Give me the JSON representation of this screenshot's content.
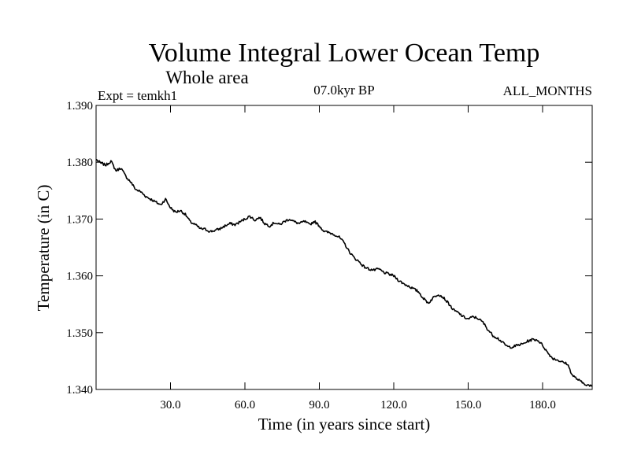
{
  "chart_data": {
    "type": "line",
    "title": "Volume Integral Lower Ocean Temp",
    "subtitle": "Whole area",
    "expt_label": "Expt = temkh1",
    "period_label": "07.0kyr BP",
    "months_label": "ALL_MONTHS",
    "xlabel": "Time (in years since start)",
    "ylabel": "Temperature (in C)",
    "xlim": [
      0,
      200
    ],
    "ylim": [
      1.34,
      1.39
    ],
    "x_ticks": [
      30,
      60,
      90,
      120,
      150,
      180
    ],
    "x_tick_labels": [
      "30.0",
      "60.0",
      "90.0",
      "120.0",
      "150.0",
      "180.0"
    ],
    "y_ticks": [
      1.34,
      1.35,
      1.36,
      1.37,
      1.38,
      1.39
    ],
    "y_tick_labels": [
      "1.340",
      "1.350",
      "1.360",
      "1.370",
      "1.380",
      "1.390"
    ],
    "series": [
      {
        "name": "temkh1",
        "x": [
          0,
          2,
          4,
          6,
          8,
          10,
          12,
          14,
          16,
          18,
          20,
          22,
          24,
          26,
          28,
          30,
          32,
          34,
          36,
          38,
          40,
          42,
          44,
          46,
          48,
          50,
          52,
          54,
          56,
          58,
          60,
          62,
          64,
          66,
          68,
          70,
          72,
          74,
          76,
          78,
          80,
          82,
          84,
          86,
          88,
          90,
          92,
          94,
          96,
          98,
          100,
          102,
          104,
          106,
          108,
          110,
          112,
          114,
          116,
          118,
          120,
          122,
          124,
          126,
          128,
          130,
          132,
          134,
          136,
          138,
          140,
          142,
          144,
          146,
          148,
          150,
          152,
          154,
          156,
          158,
          160,
          162,
          164,
          166,
          168,
          170,
          172,
          174,
          176,
          178,
          180,
          182,
          184,
          186,
          188,
          190,
          192,
          194,
          196,
          198,
          200
        ],
        "y": [
          1.3805,
          1.3798,
          1.3795,
          1.3802,
          1.3785,
          1.379,
          1.3775,
          1.3765,
          1.3752,
          1.3748,
          1.374,
          1.3735,
          1.373,
          1.3725,
          1.3735,
          1.372,
          1.3712,
          1.3715,
          1.3708,
          1.3695,
          1.369,
          1.3683,
          1.3682,
          1.3678,
          1.368,
          1.3683,
          1.3688,
          1.3692,
          1.369,
          1.3695,
          1.37,
          1.3705,
          1.3698,
          1.3703,
          1.3692,
          1.3688,
          1.3694,
          1.369,
          1.3696,
          1.37,
          1.3695,
          1.3692,
          1.3696,
          1.369,
          1.3696,
          1.3688,
          1.3678,
          1.3676,
          1.3673,
          1.3668,
          1.3658,
          1.3643,
          1.3632,
          1.3625,
          1.3616,
          1.3612,
          1.361,
          1.3612,
          1.3606,
          1.3603,
          1.36,
          1.3592,
          1.3586,
          1.3582,
          1.3577,
          1.3572,
          1.356,
          1.3552,
          1.3562,
          1.3568,
          1.3562,
          1.3552,
          1.354,
          1.3535,
          1.3528,
          1.3524,
          1.3528,
          1.3525,
          1.3518,
          1.3505,
          1.3495,
          1.349,
          1.3482,
          1.3475,
          1.3475,
          1.3478,
          1.348,
          1.3485,
          1.3488,
          1.3487,
          1.3478,
          1.3465,
          1.3455,
          1.3452,
          1.3448,
          1.3445,
          1.3425,
          1.3418,
          1.3412,
          1.3408,
          1.3405
        ]
      }
    ]
  }
}
